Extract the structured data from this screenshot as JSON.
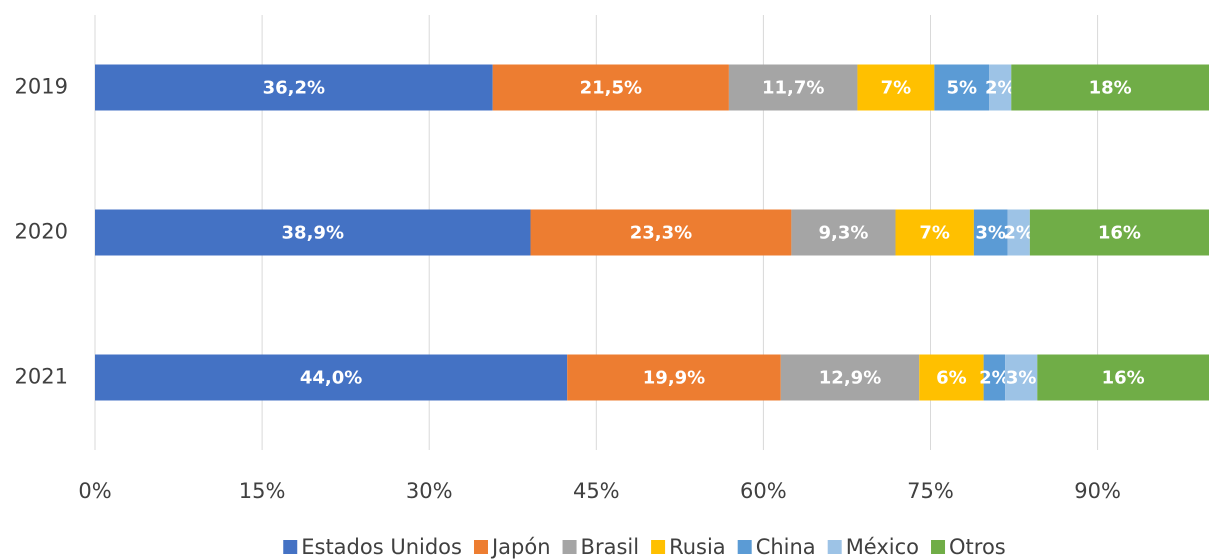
{
  "chart_data": {
    "type": "bar",
    "orientation": "horizontal",
    "stack": "percent",
    "categories": [
      "2019",
      "2020",
      "2021"
    ],
    "series": [
      {
        "name": "Estados Unidos",
        "color": "#4472c4",
        "values": [
          36.2,
          38.9,
          44.0
        ],
        "value_labels": [
          "36,2%",
          "38,9%",
          "44,0%"
        ]
      },
      {
        "name": "Japón",
        "color": "#ed7d31",
        "values": [
          21.5,
          23.3,
          19.9
        ],
        "value_labels": [
          "21,5%",
          "23,3%",
          "19,9%"
        ]
      },
      {
        "name": "Brasil",
        "color": "#a5a5a5",
        "values": [
          11.7,
          9.3,
          12.9
        ],
        "value_labels": [
          "11,7%",
          "9,3%",
          "12,9%"
        ]
      },
      {
        "name": "Rusia",
        "color": "#ffc000",
        "values": [
          7,
          7,
          6
        ],
        "value_labels": [
          "7%",
          "7%",
          "6%"
        ]
      },
      {
        "name": "China",
        "color": "#5b9bd5",
        "values": [
          5,
          3,
          2
        ],
        "value_labels": [
          "5%",
          "3%",
          "2%"
        ]
      },
      {
        "name": "México",
        "color": "#9dc3e6",
        "values": [
          2,
          2,
          3
        ],
        "value_labels": [
          "2%",
          "2%",
          "3%"
        ]
      },
      {
        "name": "Otros",
        "color": "#70ad47",
        "values": [
          18,
          16,
          16
        ],
        "value_labels": [
          "18%",
          "16%",
          "16%"
        ]
      }
    ],
    "xlim": [
      0,
      100
    ],
    "xticks": [
      {
        "value": 0,
        "label": "0%"
      },
      {
        "value": 15,
        "label": "15%"
      },
      {
        "value": 30,
        "label": "30%"
      },
      {
        "value": 45,
        "label": "45%"
      },
      {
        "value": 60,
        "label": "60%"
      },
      {
        "value": 75,
        "label": "75%"
      },
      {
        "value": 90,
        "label": "90%"
      }
    ],
    "grid": true,
    "legend": "bottom"
  }
}
